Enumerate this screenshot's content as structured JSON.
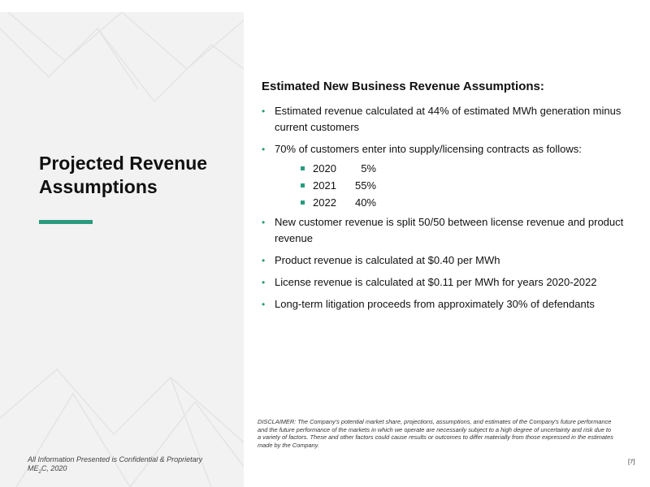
{
  "slide": {
    "title": "Projected Revenue Assumptions",
    "heading": "Estimated New Business Revenue Assumptions:",
    "bullets_top": [
      "Estimated revenue calculated at 44% of estimated MWh generation minus current customers",
      "70% of customers enter into supply/licensing contracts as follows:"
    ],
    "sub_bullets": [
      {
        "year": "2020",
        "pct": "5%"
      },
      {
        "year": "2021",
        "pct": "55%"
      },
      {
        "year": "2022",
        "pct": "40%"
      }
    ],
    "bullets_bottom": [
      "New customer revenue is split 50/50 between license revenue and product revenue",
      "Product revenue is calculated at $0.40 per MWh",
      "License revenue is calculated at $0.11 per MWh for years 2020-2022",
      "Long-term litigation proceeds from approximately 30% of defendants"
    ],
    "disclaimer": "DISCLAIMER:  The Company's potential market share, projections, assumptions, and estimates of the Company's future performance and the future performance of the markets in which we operate are necessarily subject to a high degree of uncertainty and risk due to a variety of factors. These and other factors could cause results or outcomes to differ materially from those expressed in the estimates made by the Company.",
    "footer_line1": "All Information Presented is Confidential & Proprietary",
    "footer_company_pre": "ME",
    "footer_company_sub": "2",
    "footer_company_post": "C, 2020",
    "page_number": "[7]"
  },
  "colors": {
    "accent": "#2a9a7e",
    "panel": "#f2f2f2"
  }
}
